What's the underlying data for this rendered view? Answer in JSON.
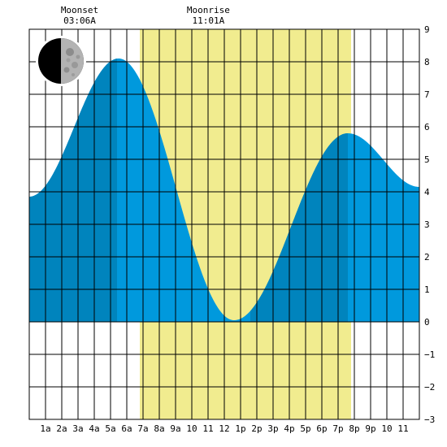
{
  "chart_data": {
    "type": "area",
    "x_unit": "hour of day",
    "xlim": [
      0,
      24
    ],
    "ylim": [
      -3,
      9
    ],
    "y_ticks": [
      9,
      8,
      7,
      6,
      5,
      4,
      3,
      2,
      1,
      0,
      -1,
      -2,
      -3
    ],
    "y_tick_labels": [
      "9",
      "8",
      "7",
      "6",
      "5",
      "4",
      "3",
      "2",
      "1",
      "0",
      "−1",
      "−2",
      "−3"
    ],
    "x_ticks": [
      1,
      2,
      3,
      4,
      5,
      6,
      7,
      8,
      9,
      10,
      11,
      12,
      13,
      14,
      15,
      16,
      17,
      18,
      19,
      20,
      21,
      22,
      23
    ],
    "x_tick_labels": [
      "1a",
      "2a",
      "3a",
      "4a",
      "5a",
      "6a",
      "7a",
      "8a",
      "9a",
      "10",
      "11",
      "12",
      "1p",
      "2p",
      "3p",
      "4p",
      "5p",
      "6p",
      "7p",
      "8p",
      "9p",
      "10",
      "11"
    ],
    "daylight": {
      "start": 6.8,
      "end": 19.8
    },
    "moon_events": [
      {
        "label": "Moonset",
        "time": "03:06A",
        "hour": 3.1
      },
      {
        "label": "Moonrise",
        "time": "11:01A",
        "hour": 11.02
      }
    ],
    "moon_phase": "waxing half moon",
    "tide_extremes": [
      {
        "hour": 0,
        "height": 3.85
      },
      {
        "hour": 5.5,
        "height": 8.1
      },
      {
        "hour": 12.6,
        "height": 0.05
      },
      {
        "hour": 19.6,
        "height": 5.8
      },
      {
        "hour": 24,
        "height": 4.15
      }
    ],
    "dark_bands": [
      [
        0,
        5.4
      ],
      [
        13.6,
        19.6
      ]
    ],
    "grid": true,
    "colors": {
      "daylight": "#f1ec8f",
      "tide_light": "#0099dd",
      "tide_dark": "#0084bd",
      "grid": "#000000"
    }
  }
}
